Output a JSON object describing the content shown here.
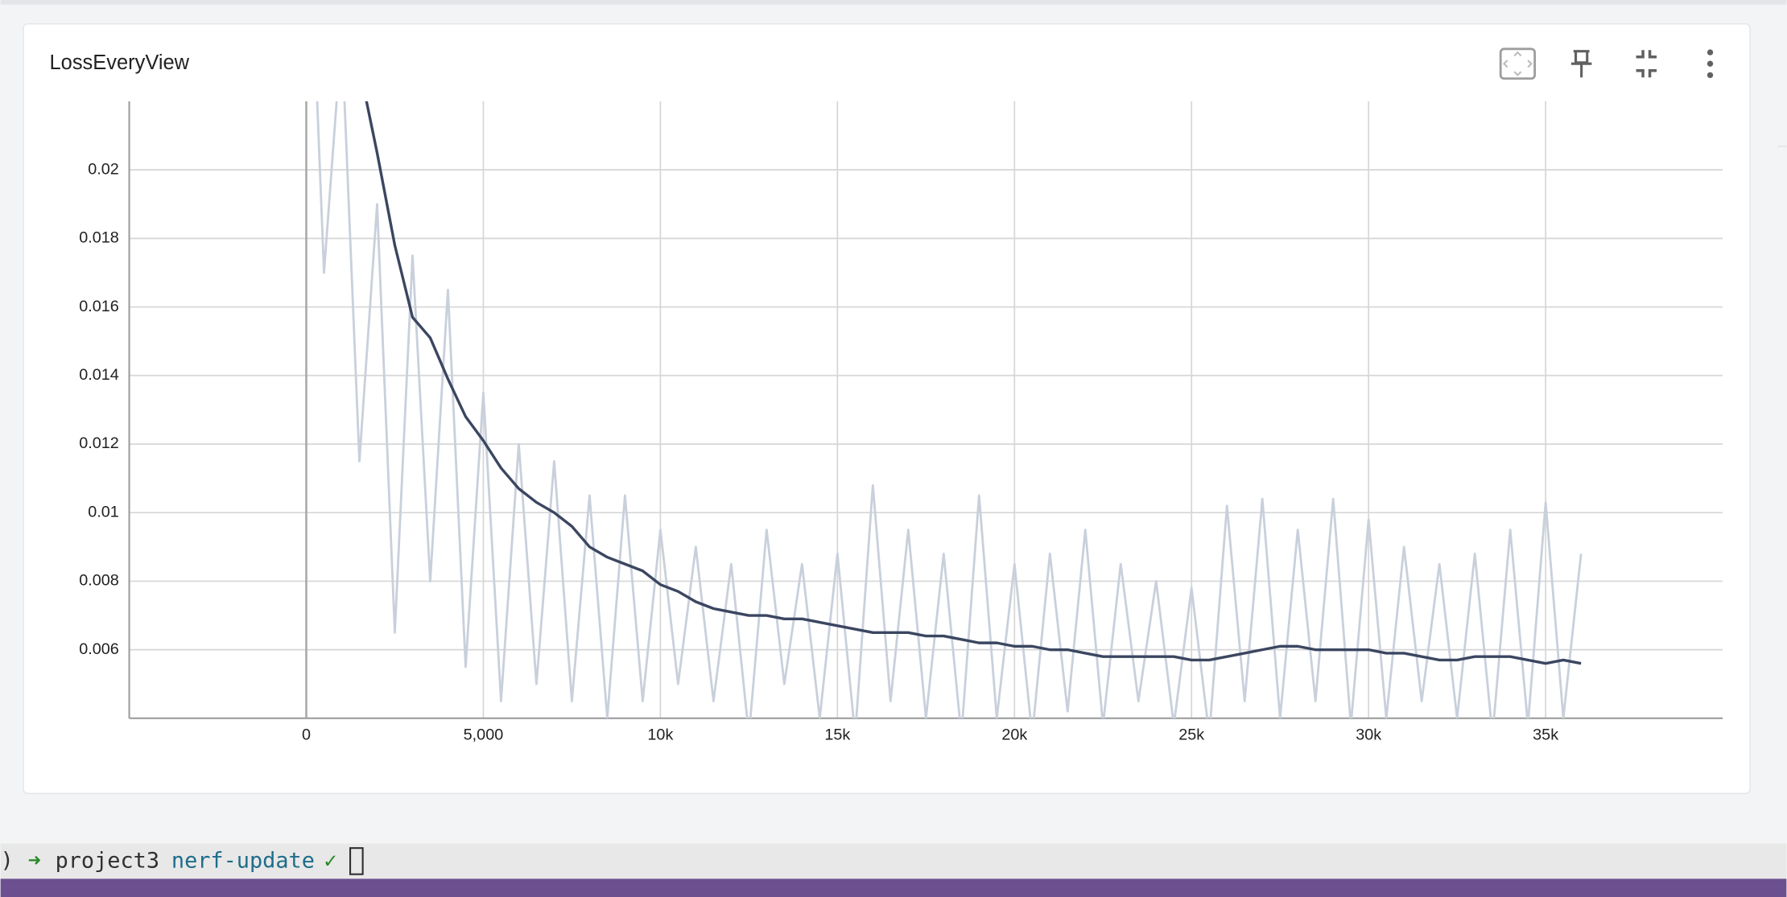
{
  "card": {
    "title": "LossEveryView"
  },
  "chart_data": {
    "type": "line",
    "x": [
      0,
      500,
      1000,
      1500,
      2000,
      2500,
      3000,
      3500,
      4000,
      4500,
      5000,
      5500,
      6000,
      6500,
      7000,
      7500,
      8000,
      8500,
      9000,
      9500,
      10000,
      10500,
      11000,
      11500,
      12000,
      12500,
      13000,
      13500,
      14000,
      14500,
      15000,
      15500,
      16000,
      16500,
      17000,
      17500,
      18000,
      18500,
      19000,
      19500,
      20000,
      20500,
      21000,
      21500,
      22000,
      22500,
      23000,
      23500,
      24000,
      24500,
      25000,
      25500,
      26000,
      26500,
      27000,
      27500,
      28000,
      28500,
      29000,
      29500,
      30000,
      30500,
      31000,
      31500,
      32000,
      32500,
      33000,
      33500,
      34000,
      34500,
      35000,
      35500,
      36000
    ],
    "series": [
      {
        "color": "#c9d0dc",
        "values": [
          0.03,
          0.017,
          0.024,
          0.0115,
          0.019,
          0.0065,
          0.0175,
          0.008,
          0.0165,
          0.0055,
          0.0135,
          0.0045,
          0.012,
          0.005,
          0.0115,
          0.0045,
          0.0105,
          0.004,
          0.0105,
          0.0045,
          0.0095,
          0.005,
          0.009,
          0.0045,
          0.0085,
          0.0035,
          0.0095,
          0.005,
          0.0085,
          0.004,
          0.0088,
          0.0035,
          0.0108,
          0.0045,
          0.0095,
          0.004,
          0.0088,
          0.0035,
          0.0105,
          0.004,
          0.0085,
          0.0035,
          0.0088,
          0.0042,
          0.0095,
          0.0038,
          0.0085,
          0.0045,
          0.008,
          0.0038,
          0.0078,
          0.0035,
          0.0102,
          0.0045,
          0.0104,
          0.004,
          0.0095,
          0.0045,
          0.0104,
          0.0038,
          0.0098,
          0.004,
          0.009,
          0.0045,
          0.0085,
          0.004,
          0.0088,
          0.0035,
          0.0095,
          0.0038,
          0.0103,
          0.004,
          0.0088
        ]
      },
      {
        "color": "#3b4660",
        "values": [
          null,
          null,
          null,
          0.023,
          0.0205,
          0.0178,
          0.0157,
          0.0151,
          0.0139,
          0.0128,
          0.0121,
          0.0113,
          0.0107,
          0.0103,
          0.01,
          0.0096,
          0.009,
          0.0087,
          0.0085,
          0.0083,
          0.0079,
          0.0077,
          0.0074,
          0.0072,
          0.0071,
          0.007,
          0.007,
          0.0069,
          0.0069,
          0.0068,
          0.0067,
          0.0066,
          0.0065,
          0.0065,
          0.0065,
          0.0064,
          0.0064,
          0.0063,
          0.0062,
          0.0062,
          0.0061,
          0.0061,
          0.006,
          0.006,
          0.0059,
          0.0058,
          0.0058,
          0.0058,
          0.0058,
          0.0058,
          0.0057,
          0.0057,
          0.0058,
          0.0059,
          0.006,
          0.0061,
          0.0061,
          0.006,
          0.006,
          0.006,
          0.006,
          0.0059,
          0.0059,
          0.0058,
          0.0057,
          0.0057,
          0.0058,
          0.0058,
          0.0058,
          0.0057,
          0.0056,
          0.0057,
          0.0056
        ]
      }
    ],
    "xlim": [
      -5000,
      40000
    ],
    "xticks": [
      0,
      {
        "value": 5000,
        "label": "5,000"
      },
      {
        "value": 10000,
        "label": "10k"
      },
      {
        "value": 15000,
        "label": "15k"
      },
      {
        "value": 20000,
        "label": "20k"
      },
      {
        "value": 25000,
        "label": "25k"
      },
      {
        "value": 30000,
        "label": "30k"
      },
      {
        "value": 35000,
        "label": "35k"
      }
    ],
    "ylim": [
      0.004,
      0.022
    ],
    "yticks": [
      0.006,
      0.008,
      0.01,
      0.012,
      0.014,
      0.016,
      0.018,
      0.02
    ],
    "grid": true
  },
  "terminal": {
    "arrow": "➜",
    "directory": "project3",
    "branch": "nerf-update",
    "status": "✓"
  }
}
